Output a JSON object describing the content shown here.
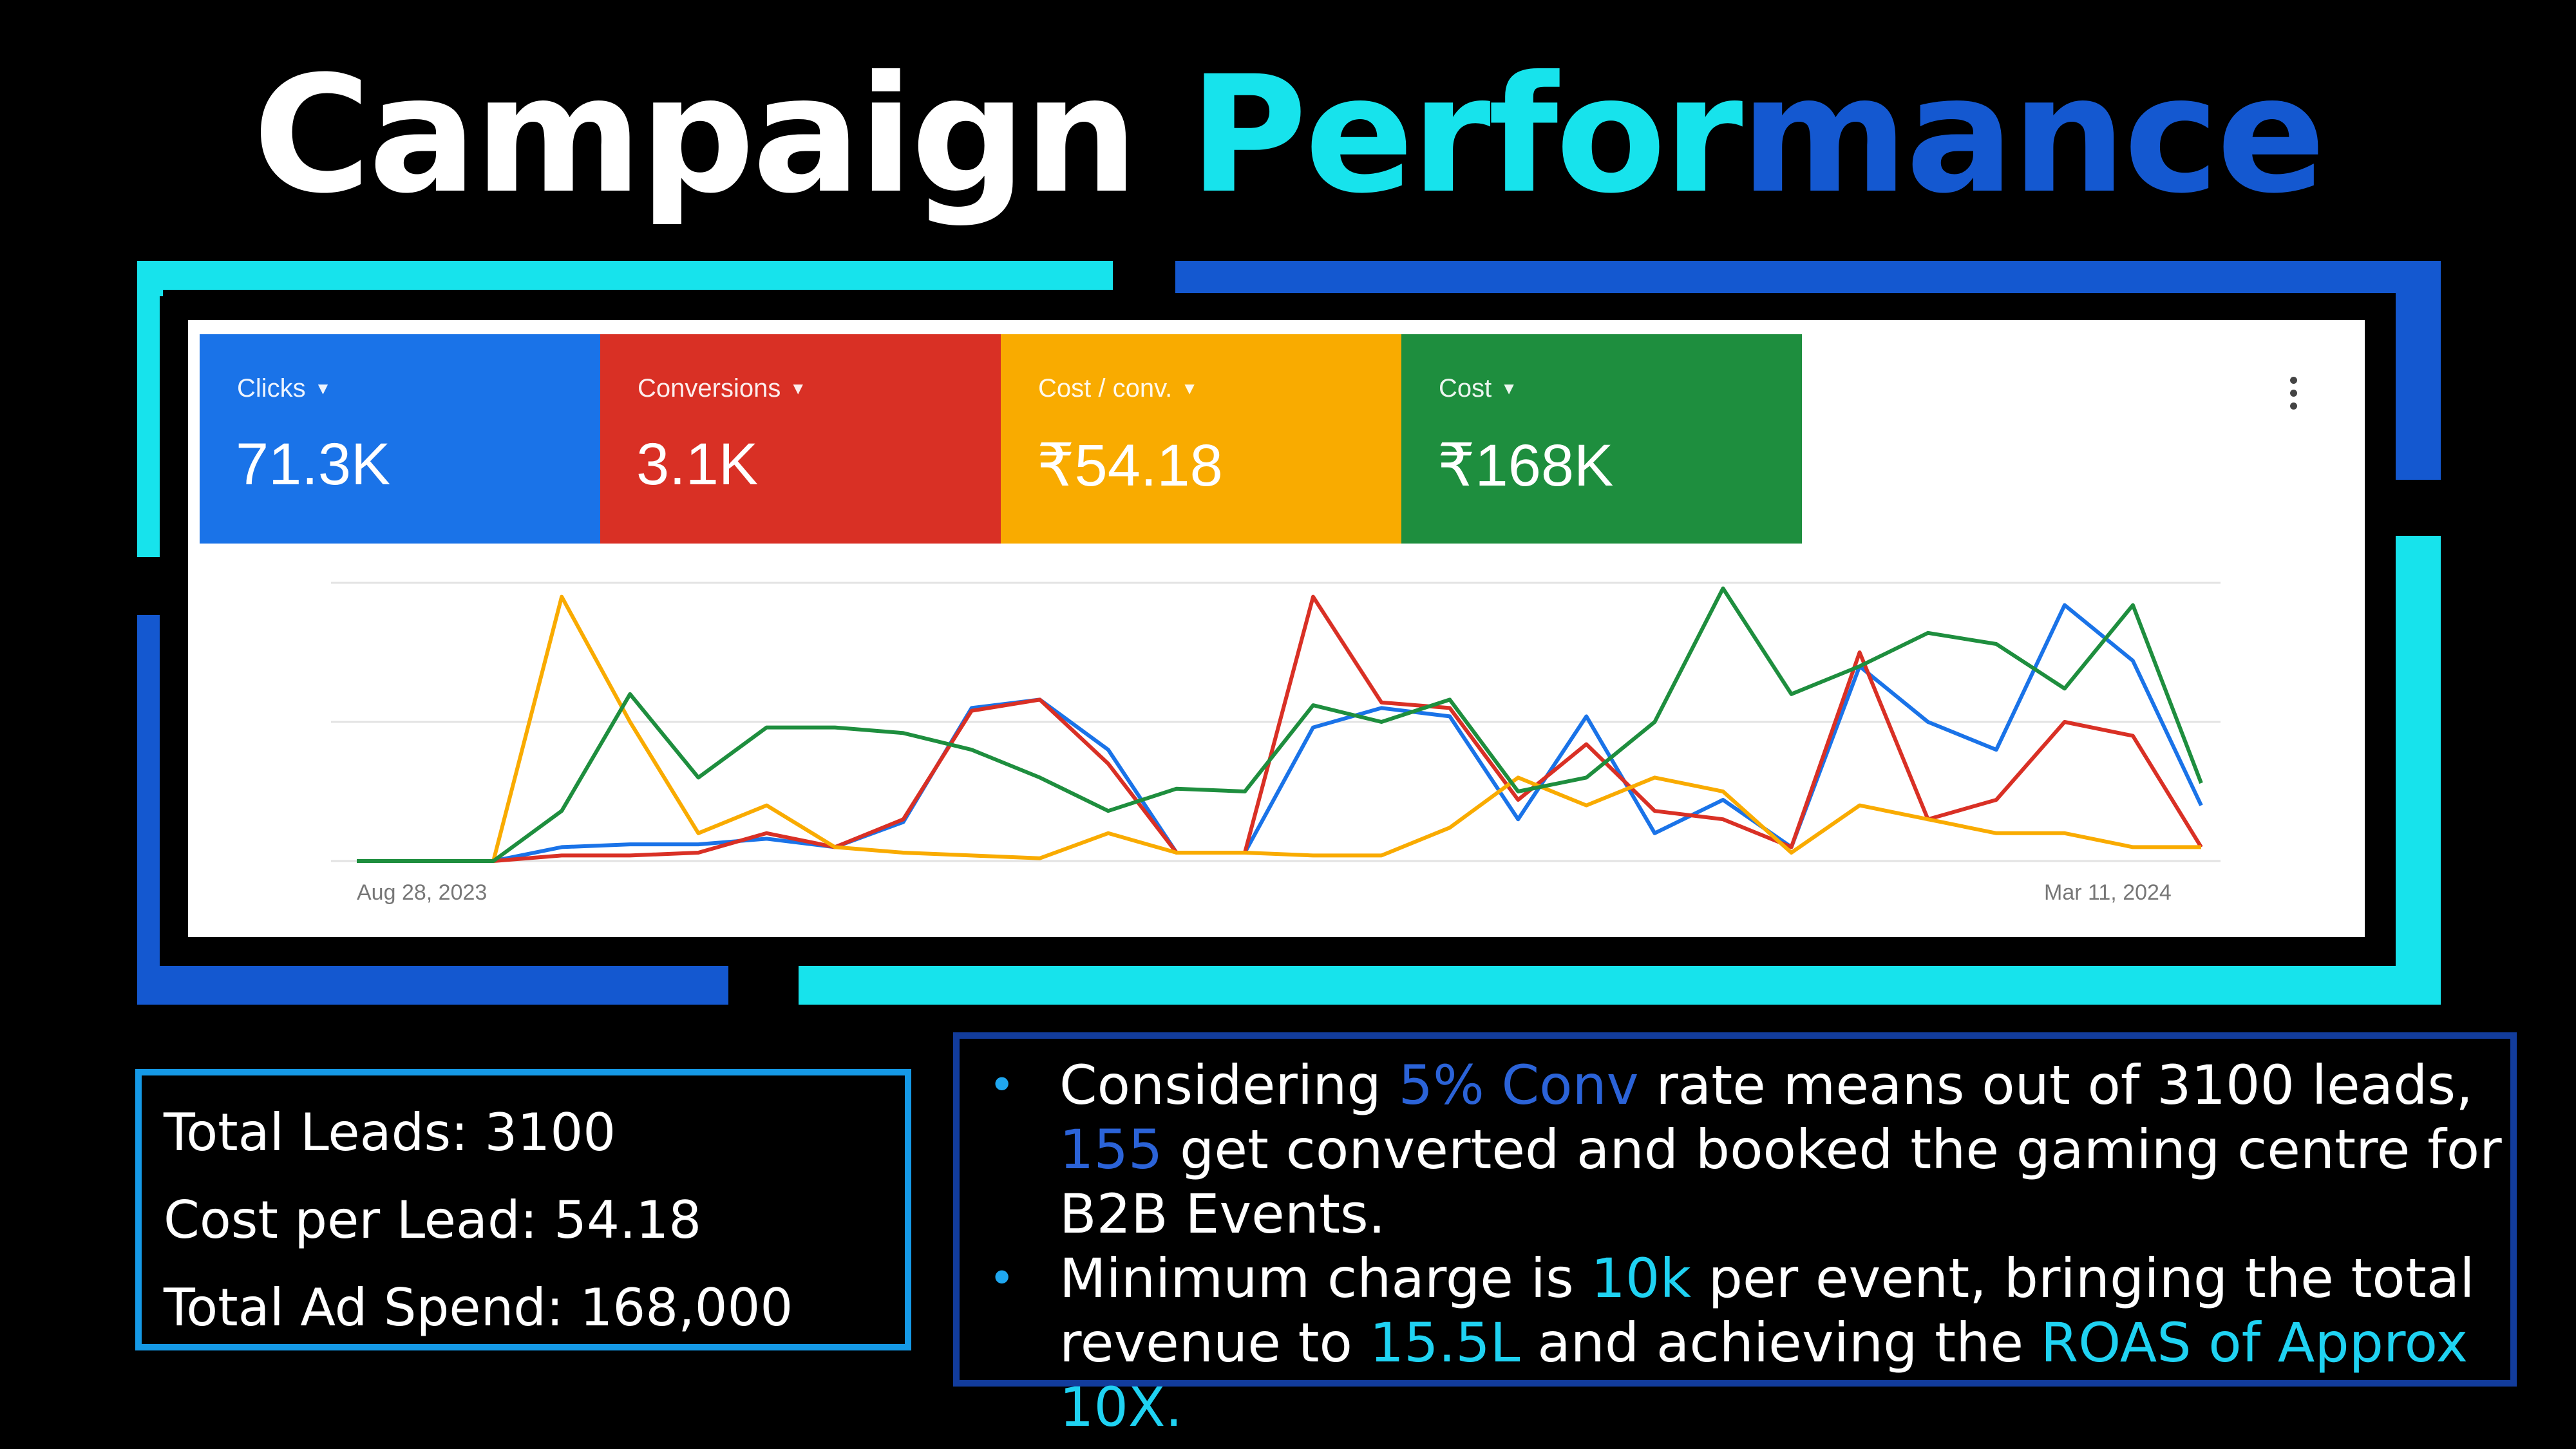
{
  "title": {
    "part1": "Campaign",
    "part2": "Perfor",
    "part3": "mance"
  },
  "colors": {
    "accent_cyan": "#17e3ec",
    "accent_blue": "#1458d0",
    "clicks": "#1a73e8",
    "conversions": "#d93025",
    "cost_per_conv": "#f9ab00",
    "cost": "#1e8e3e"
  },
  "scorecards": [
    {
      "label": "Clicks",
      "value": "71.3K",
      "icon": "caret-down-icon"
    },
    {
      "label": "Conversions",
      "value": "3.1K",
      "icon": "caret-down-icon"
    },
    {
      "label": "Cost / conv.",
      "value": "₹54.18",
      "icon": "caret-down-icon"
    },
    {
      "label": "Cost",
      "value": "₹168K",
      "icon": "caret-down-icon"
    }
  ],
  "menu_icon": "more-vert-icon",
  "chart_data": {
    "type": "line",
    "x_start_label": "Aug 28, 2023",
    "x_end_label": "Mar 11, 2024",
    "ylim": [
      0,
      100
    ],
    "grid": true,
    "series": [
      {
        "name": "Clicks",
        "color": "#1a73e8",
        "values": [
          0,
          0,
          0,
          5,
          6,
          6,
          8,
          5,
          14,
          55,
          58,
          40,
          3,
          3,
          48,
          55,
          52,
          15,
          52,
          10,
          22,
          5,
          70,
          50,
          40,
          92,
          72,
          20
        ]
      },
      {
        "name": "Conversions",
        "color": "#d93025",
        "values": [
          0,
          0,
          0,
          2,
          2,
          3,
          10,
          5,
          15,
          54,
          58,
          35,
          3,
          3,
          95,
          57,
          55,
          22,
          42,
          18,
          15,
          5,
          75,
          15,
          22,
          50,
          45,
          5
        ]
      },
      {
        "name": "Cost / conv.",
        "color": "#f9ab00",
        "values": [
          0,
          0,
          0,
          95,
          50,
          10,
          20,
          5,
          3,
          2,
          1,
          10,
          3,
          3,
          2,
          2,
          12,
          30,
          20,
          30,
          25,
          3,
          20,
          15,
          10,
          10,
          5,
          5
        ]
      },
      {
        "name": "Cost",
        "color": "#1e8e3e",
        "values": [
          0,
          0,
          0,
          18,
          60,
          30,
          48,
          48,
          46,
          40,
          30,
          18,
          26,
          25,
          56,
          50,
          58,
          25,
          30,
          50,
          98,
          60,
          70,
          82,
          78,
          62,
          92,
          28
        ]
      }
    ]
  },
  "stats": {
    "total_leads": "Total Leads: 3100",
    "cost_per_lead": "Cost per Lead: 54.18",
    "total_ad_spend": "Total Ad Spend: 168,000"
  },
  "notes": {
    "bullet_char": "•",
    "b1": {
      "t1": "Considering ",
      "h1": "5% Conv",
      "t2": " rate means out of 3100 leads, ",
      "h2": "155",
      "t3": " get converted and booked the gaming centre for B2B Events."
    },
    "b2": {
      "t1": "Minimum charge is ",
      "h1": "10k",
      "t2": " per event, bringing the total revenue to ",
      "h2": "15.5L",
      "t3": " and achieving the ",
      "h3": "ROAS of Approx 10X."
    }
  }
}
